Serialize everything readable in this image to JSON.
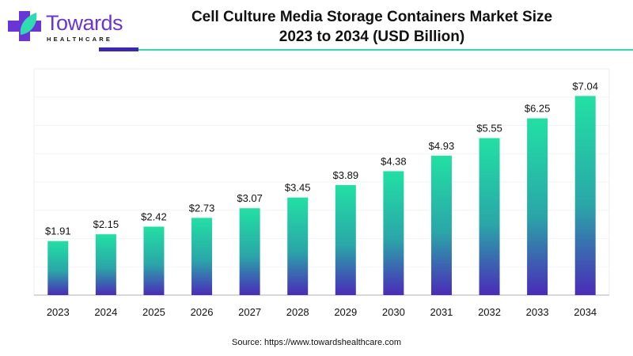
{
  "logo": {
    "name": "Towards",
    "sub": "HEALTHCARE"
  },
  "title_line1": "Cell Culture Media Storage Containers Market Size",
  "title_line2": "2023 to 2034 (USD Billion)",
  "source": "Source: https://www.towardshealthcare.com",
  "colors": {
    "bar_top": "#22e0a4",
    "bar_bottom": "#4a2bb8",
    "accent": "#6a35d8"
  },
  "chart_data": {
    "type": "bar",
    "title": "Cell Culture Media Storage Containers Market Size 2023 to 2034 (USD Billion)",
    "categories": [
      "2023",
      "2024",
      "2025",
      "2026",
      "2027",
      "2028",
      "2029",
      "2030",
      "2031",
      "2032",
      "2033",
      "2034"
    ],
    "values": [
      1.91,
      2.15,
      2.42,
      2.73,
      3.07,
      3.45,
      3.89,
      4.38,
      4.93,
      5.55,
      6.25,
      7.04
    ],
    "labels": [
      "$1.91",
      "$2.15",
      "$2.42",
      "$2.73",
      "$3.07",
      "$3.45",
      "$3.89",
      "$4.38",
      "$4.93",
      "$5.55",
      "$6.25",
      "$7.04"
    ],
    "ylim": [
      0,
      8
    ],
    "grid": true,
    "xlabel": "",
    "ylabel": ""
  }
}
